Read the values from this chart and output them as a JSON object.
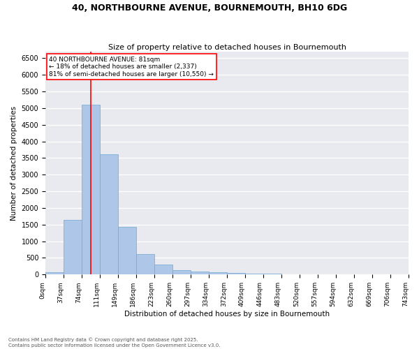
{
  "title": "40, NORTHBOURNE AVENUE, BOURNEMOUTH, BH10 6DG",
  "subtitle": "Size of property relative to detached houses in Bournemouth",
  "xlabel": "Distribution of detached houses by size in Bournemouth",
  "ylabel": "Number of detached properties",
  "footer": "Contains HM Land Registry data © Crown copyright and database right 2025.\nContains public sector information licensed under the Open Government Licence v3.0.",
  "bar_values": [
    75,
    1650,
    5100,
    3620,
    1430,
    620,
    310,
    140,
    100,
    75,
    50,
    30,
    20,
    10,
    5,
    3,
    2,
    1,
    0,
    0
  ],
  "categories": [
    "0sqm",
    "37sqm",
    "74sqm",
    "111sqm",
    "149sqm",
    "186sqm",
    "223sqm",
    "260sqm",
    "297sqm",
    "334sqm",
    "372sqm",
    "409sqm",
    "446sqm",
    "483sqm",
    "520sqm",
    "557sqm",
    "594sqm",
    "632sqm",
    "669sqm",
    "706sqm",
    "743sqm"
  ],
  "bar_color": "#aec6e8",
  "bar_edge_color": "#6fa8d4",
  "bg_color": "#e8eaf0",
  "grid_color": "#ffffff",
  "annotation_text": "40 NORTHBOURNE AVENUE: 81sqm\n← 18% of detached houses are smaller (2,337)\n81% of semi-detached houses are larger (10,550) →",
  "vline_bar_idx": 2,
  "ylim": [
    0,
    6700
  ],
  "title_fontsize": 9,
  "subtitle_fontsize": 8,
  "label_fontsize": 7.5,
  "tick_fontsize": 6.5,
  "annotation_fontsize": 6.5,
  "ytick_fontsize": 7
}
